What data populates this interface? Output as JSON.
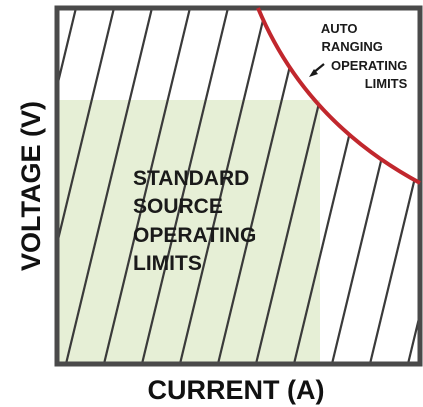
{
  "diagram": {
    "x_axis_label": "CURRENT (A)",
    "y_axis_label": "VOLTAGE (V)",
    "standard_region": {
      "lines": [
        "STANDARD",
        "SOURCE",
        "OPERATING",
        "LIMITS"
      ]
    },
    "auto_ranging_region": {
      "lines": [
        "AUTO",
        "RANGING",
        "OPERATING",
        "LIMITS"
      ]
    }
  },
  "colors": {
    "frame": "#4a4a4a",
    "hatch": "#3a3a3a",
    "standard_fill": "#e6efd6",
    "curve": "#c1272d",
    "text": "#1a1a1a"
  }
}
